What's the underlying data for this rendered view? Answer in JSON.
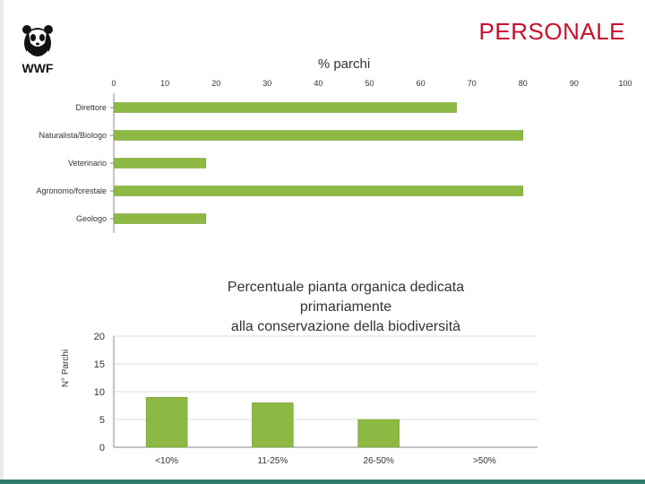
{
  "slide": {
    "title": "PERSONALE",
    "logo_text": "WWF"
  },
  "colors": {
    "title": "#c8102e",
    "bar": "#8db843",
    "bar_edge": "#6f9a2c",
    "axis": "#888888",
    "text": "#333333"
  },
  "chart_data": [
    {
      "type": "bar",
      "orientation": "horizontal",
      "title": "% parchi",
      "categories": [
        "Direttore",
        "Naturalista/Biologo",
        "Veterinario",
        "Agronomo/forestale",
        "Geologo"
      ],
      "values": [
        67,
        80,
        18,
        80,
        18
      ],
      "xlim": [
        0,
        100
      ],
      "xticks": [
        0,
        10,
        20,
        30,
        40,
        50,
        60,
        70,
        80,
        90,
        100
      ],
      "axis_position": "top",
      "grid": false
    },
    {
      "type": "bar",
      "orientation": "vertical",
      "title": "Percentuale pianta organica dedicata primariamente alla conservazione della biodiversità",
      "title_lines": [
        "Percentuale pianta organica dedicata",
        "primariamente",
        "alla conservazione della biodiversità"
      ],
      "ylabel": "N° Parchi",
      "categories": [
        "<10%",
        "11-25%",
        "26-50%",
        ">50%"
      ],
      "values": [
        9,
        8,
        5,
        0
      ],
      "ylim": [
        0,
        20
      ],
      "yticks": [
        0,
        5,
        10,
        15,
        20
      ],
      "grid": false
    }
  ]
}
